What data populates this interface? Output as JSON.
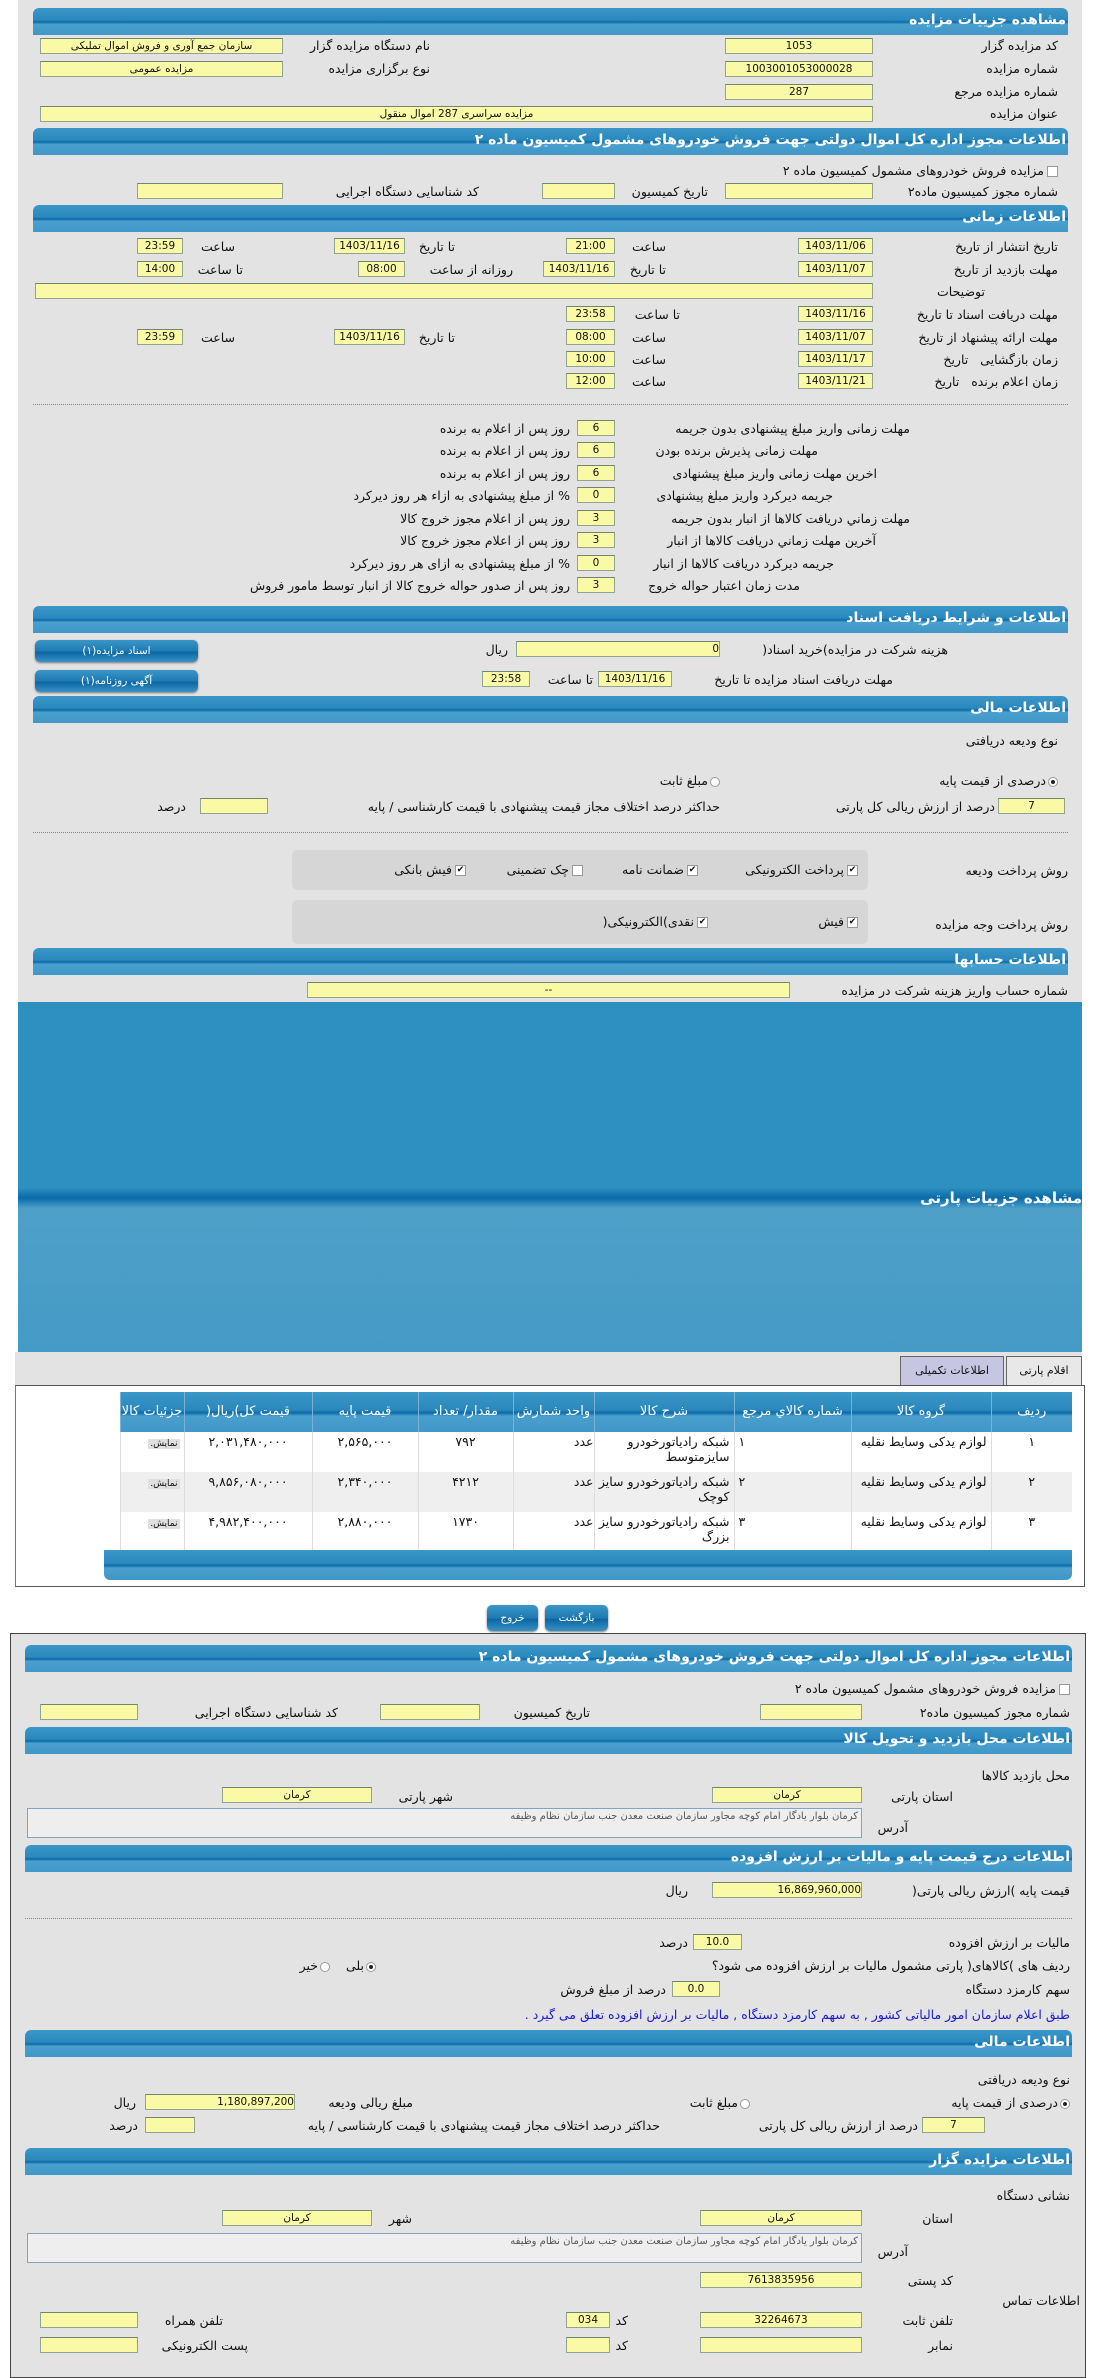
{
  "details": {
    "title": "مشاهده جزییات مزایده",
    "org_code_label": "کد مزایده گزار",
    "org_code": "1053",
    "org_name_label": "نام دستگاه مزایده گزار",
    "org_name": "سازمان جمع آوری و فروش اموال تملیکی",
    "auction_no_label": "شماره مزایده",
    "auction_no": "1003001053000028",
    "type_label": "نوع برگزاری مزایده",
    "type": "مزایده عمومی",
    "ref_no_label": "شماره مزایده مرجع",
    "ref_no": "287",
    "subject_label": "عنوان مزایده",
    "subject": "مزایده سراسری 287 اموال منقول"
  },
  "permit": {
    "title": "اطلاعات مجوز اداره کل اموال دولتی جهت فروش خودروهای مشمول کمیسیون ماده ۲",
    "checkbox_label": "مزایده فروش خودروهای مشمول کمیسیون ماده ۲",
    "checked": false,
    "permit_no_label": "شماره مجوز کمیسیون ماده۲",
    "date_label": "تاریخ کمیسیون",
    "exec_code_label": "کد شناسایی دستگاه اجرایی"
  },
  "timing": {
    "title": "اطلاعات زمانی",
    "from_date": "از تاریخ",
    "to_date": "تا تاریخ",
    "date": "تاریخ",
    "time": "ساعت",
    "to_time": "تا ساعت",
    "daily_from": "روزانه از ساعت",
    "publish_label": "تاریخ انتشار",
    "publish_from": "1403/11/06",
    "publish_from_time": "21:00",
    "publish_to": "1403/11/16",
    "publish_to_time": "23:59",
    "visit_label": "مهلت بازدید",
    "visit_from": "1403/11/07",
    "visit_to": "1403/11/16",
    "visit_daily_from": "08:00",
    "visit_daily_to": "14:00",
    "desc_label": "توضیحات",
    "desc": "",
    "docs_label": "مهلت دریافت اسناد",
    "docs_to": "1403/11/16",
    "docs_to_time": "23:58",
    "offer_label": "مهلت ارائه پیشنهاد",
    "offer_from": "1403/11/07",
    "offer_from_time": "08:00",
    "offer_to": "1403/11/16",
    "offer_to_time": "23:59",
    "open_label": "زمان بازگشایی",
    "open_date": "1403/11/17",
    "open_time": "10:00",
    "winner_label": "زمان اعلام برنده",
    "winner_date": "1403/11/21",
    "winner_time": "12:00"
  },
  "penalties": [
    {
      "label": "مهلت زمانی واریز مبلغ پیشنهادی بدون جریمه",
      "value": "6",
      "suffix": "روز پس از اعلام به برنده"
    },
    {
      "label": "مهلت زمانی پذیرش برنده بودن",
      "value": "6",
      "suffix": "روز پس از اعلام به برنده"
    },
    {
      "label": "اخرین مهلت زمانی واریز مبلغ پیشنهادی",
      "value": "6",
      "suffix": "روز پس از اعلام به برنده"
    },
    {
      "label": "جریمه دیرکرد واریز مبلغ پیشنهادی",
      "value": "0",
      "suffix": "% از مبلغ پیشنهادی به ازاء هر روز دیرکرد"
    },
    {
      "label": "مهلت زماني دریافت کالاها از انبار بدون جریمه",
      "value": "3",
      "suffix": "روز پس از اعلام مجوز خروج کالا"
    },
    {
      "label": "آخرین مهلت زماني دریافت کالاها از انبار",
      "value": "3",
      "suffix": "روز پس از اعلام مجوز خروج کالا"
    },
    {
      "label": "جریمه دیرکرد دریافت کالاها از انبار",
      "value": "0",
      "suffix": "% از مبلغ پیشنهادی به ازای هر روز دیرکرد"
    },
    {
      "label": "مدت زمان اعتبار حواله خروج",
      "value": "3",
      "suffix": "روز پس از صدور حواله خروج کالا از انبار توسط مامور فروش"
    }
  ],
  "docs": {
    "title": "اطلاعات و شرایط دریافت اسناد",
    "fee_label": "هزینه شرکت در مزایده)خرید اسناد(",
    "fee": "0",
    "rial": "ریال",
    "deadline_label": "مهلت دریافت اسناد مزایده تا تاریخ",
    "date": "1403/11/16",
    "time_label": "تا ساعت",
    "time": "23:58",
    "btn_docs": "اسناد مزایده(۱)",
    "btn_ad": "آگهی روزنامه(۱)"
  },
  "finance": {
    "title": "اطلاعات مالی",
    "deposit_type_label": "نوع ودیعه دریافتی",
    "opt_percent": "درصدی از قیمت پایه",
    "opt_fixed": "مبلغ ثابت",
    "selected": "percent",
    "percent_value": "7",
    "percent_label": "درصد از ارزش ریالی کل پارتی",
    "max_diff_label": "حداکثر درصد اختلاف مجاز قیمت پیشنهادی با قیمت کارشناسی / پایه",
    "max_diff": "",
    "percent_unit": "درصد",
    "deposit_methods_label": "روش پرداخت ودیعه",
    "deposit_methods": [
      {
        "label": "پرداخت الکترونیکی",
        "checked": true
      },
      {
        "label": "ضمانت نامه",
        "checked": true
      },
      {
        "label": "چک تضمینی",
        "checked": false
      },
      {
        "label": "فیش بانکی",
        "checked": true
      }
    ],
    "payment_methods_label": "روش پرداخت وجه مزایده",
    "payment_methods": [
      {
        "label": "فیش",
        "checked": true
      },
      {
        "label": "نقدی)الکترونیکی(",
        "checked": true
      }
    ],
    "deposit_amount_label": "مبلغ ریالی ودیعه",
    "deposit_amount": "1,180,897,200"
  },
  "accounts": {
    "title": "اطلاعات حسابها",
    "label": "شماره حساب واریز هزینه شرکت در مزایده",
    "value": "--"
  },
  "party": {
    "title": "مشاهده جزییات پارتی",
    "tabs": [
      {
        "label": "اقلام پارتی",
        "selected": false
      },
      {
        "label": "اطلاعات تکمیلی",
        "selected": true
      }
    ],
    "headers": [
      "ردیف",
      "گروه کالا",
      "شماره کالاي مرجع",
      "شرح کالا",
      "واحد شمارش",
      "مقدار/ تعداد",
      "قیمت پایه",
      "قیمت کل)ریال(",
      "جزئیات کالا"
    ],
    "rows": [
      [
        "۱",
        "لوازم یدکی وسایط نقلیه",
        "۱",
        "شبکه رادیاتورخودرو سایزمتوسط",
        "عدد",
        "۷۹۲",
        "۲,۵۶۵,۰۰۰",
        "۲,۰۳۱,۴۸۰,۰۰۰",
        "نمایش."
      ],
      [
        "۲",
        "لوازم یدکی وسایط نقلیه",
        "۲",
        "شبکه رادیاتورخودرو سایز کوچک",
        "عدد",
        "۴۲۱۲",
        "۲,۳۴۰,۰۰۰",
        "۹,۸۵۶,۰۸۰,۰۰۰",
        "نمایش."
      ],
      [
        "۳",
        "لوازم یدکی وسایط نقلیه",
        "۳",
        "شبکه رادیاتورخودرو سایز بزرگ",
        "عدد",
        "۱۷۳۰",
        "۲,۸۸۰,۰۰۰",
        "۴,۹۸۲,۴۰۰,۰۰۰",
        "نمایش."
      ]
    ]
  },
  "buttons": {
    "back": "بازگشت",
    "exit": "خروج"
  },
  "location": {
    "title": "اطلاعات محل بازدید و تحویل کالا",
    "heading": "محل بازدید کالاها",
    "province_label": "استان پارتی",
    "province": "کرمان",
    "city_label": "شهر پارتی",
    "city": "کرمان",
    "address_label": "آدرس",
    "address": "کرمان بلوار یادگار امام کوچه مجاور سازمان صنعت معدن جنب سازمان نظام وظیفه"
  },
  "vat": {
    "title": "اطلاعات درج قیمت پایه و مالیات بر ارزش افزوده",
    "base_label": "قیمت پایه )ارزش ریالی پارتی(",
    "base": "16,869,960,000",
    "rial": "ریال",
    "vat_label": "مالیات بر ارزش افزوده",
    "vat": "10.0",
    "percent": "درصد",
    "rows_q": "ردیف های )کالاهای( پارتی مشمول مالیات بر ارزش افزوده می شود؟",
    "yes": "بلی",
    "no": "خیر",
    "selected": "yes",
    "fee_label": "سهم کارمزد دستگاه",
    "fee": "0.0",
    "fee_suffix": "درصد از مبلغ فروش",
    "note": "طبق اعلام سازمان امور مالیاتی کشور , به سهم کارمزد دستگاه , مالیات بر ارزش افزوده تعلق می گیرد .",
    "note_color": "#1a1ad0"
  },
  "org": {
    "title": "اطلاعات مزایده گزار",
    "address_heading": "نشانی دستگاه",
    "province_label": "استان",
    "province": "کرمان",
    "city_label": "شهر",
    "city": "کرمان",
    "address_label": "آدرس",
    "address": "کرمان بلوار یادگار امام کوچه مجاور سازمان صنعت معدن جنب سازمان نظام وظیفه",
    "postal_label": "کد پستی",
    "postal": "7613835956",
    "contact_heading": "اطلاعات تماس",
    "phone_label": "تلفن ثابت",
    "phone": "32264673",
    "code_label": "کد",
    "code": "034",
    "mobile_label": "تلفن همراه",
    "fax_label": "نمابر",
    "fax_code": "",
    "email_label": "پست الکترونیکی"
  }
}
